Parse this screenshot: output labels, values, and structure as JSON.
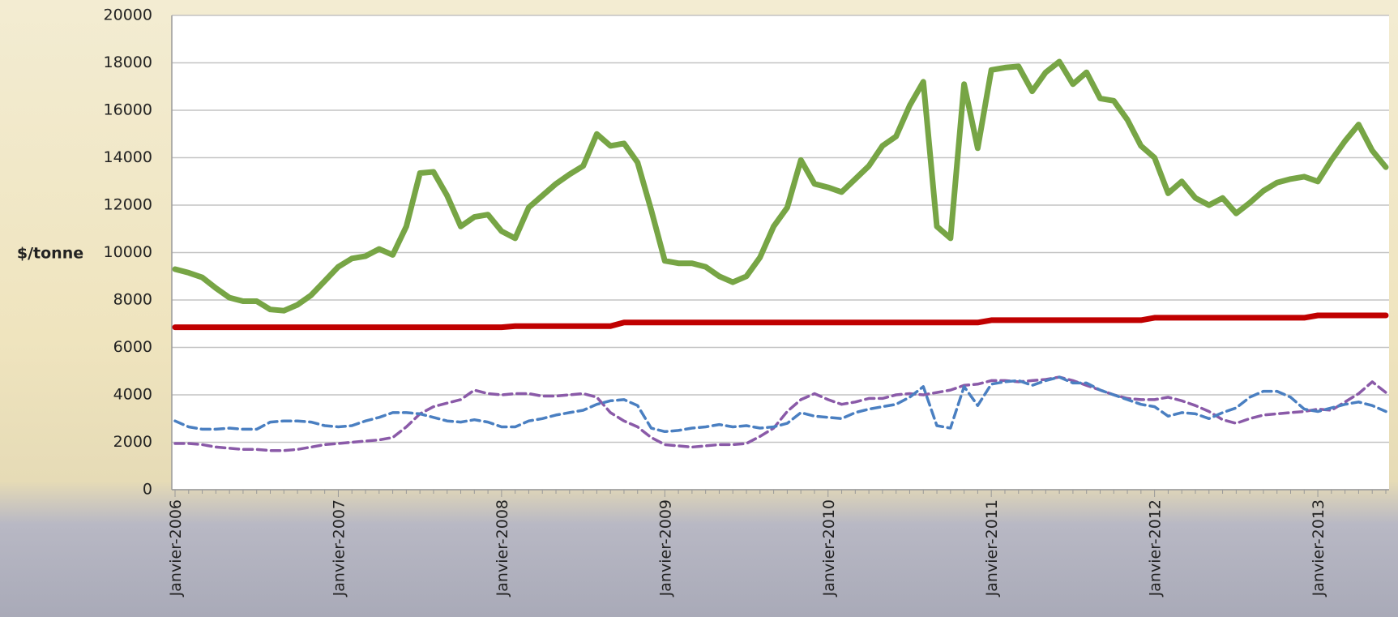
{
  "chart_data": {
    "type": "line",
    "ylabel": "$/tonne",
    "categories": [
      "Janvier-2006",
      null,
      null,
      null,
      null,
      null,
      null,
      null,
      null,
      null,
      null,
      null,
      "Janvier-2007",
      null,
      null,
      null,
      null,
      null,
      null,
      null,
      null,
      null,
      null,
      null,
      "Janvier-2008",
      null,
      null,
      null,
      null,
      null,
      null,
      null,
      null,
      null,
      null,
      null,
      "Janvier-2009",
      null,
      null,
      null,
      null,
      null,
      null,
      null,
      null,
      null,
      null,
      null,
      "Janvier-2010",
      null,
      null,
      null,
      null,
      null,
      null,
      null,
      null,
      null,
      null,
      null,
      "Janvier-2011",
      null,
      null,
      null,
      null,
      null,
      null,
      null,
      null,
      null,
      null,
      null,
      "Janvier-2012",
      null,
      null,
      null,
      null,
      null,
      null,
      null,
      null,
      null,
      null,
      null,
      "Janvier-2013",
      null,
      null,
      null,
      null,
      null
    ],
    "series": [
      {
        "color": "#77a545",
        "dashed": false,
        "values": [
          9300,
          9150,
          8950,
          8500,
          8100,
          7950,
          7950,
          7600,
          7550,
          7800,
          8200,
          8800,
          9400,
          9750,
          9850,
          10150,
          9900,
          11100,
          13350,
          13400,
          12400,
          11100,
          11500,
          11600,
          10900,
          10600,
          11900,
          12400,
          12900,
          13300,
          13650,
          15000,
          14500,
          14600,
          13800,
          11800,
          9650,
          9550,
          9550,
          9400,
          9000,
          8750,
          9000,
          9800,
          11100,
          11900,
          13900,
          12900,
          12750,
          12550,
          13100,
          13650,
          14500,
          14900,
          16200,
          17200,
          11100,
          10600,
          17100,
          14400,
          17700,
          17800,
          17850,
          16800,
          17600,
          18050,
          17100,
          17600,
          16500,
          16400,
          15600,
          14500,
          14000,
          12500,
          13000,
          12300,
          12000,
          12300,
          11650,
          12100,
          12600,
          12950,
          13100,
          13200,
          13000,
          13900,
          14700,
          15400,
          14300,
          13600
        ]
      },
      {
        "color": "#c00000",
        "dashed": false,
        "values": [
          6850,
          6850,
          6850,
          6850,
          6850,
          6850,
          6850,
          6850,
          6850,
          6850,
          6850,
          6850,
          6850,
          6850,
          6850,
          6850,
          6850,
          6850,
          6850,
          6850,
          6850,
          6850,
          6850,
          6850,
          6850,
          6900,
          6900,
          6900,
          6900,
          6900,
          6900,
          6900,
          6900,
          7050,
          7050,
          7050,
          7050,
          7050,
          7050,
          7050,
          7050,
          7050,
          7050,
          7050,
          7050,
          7050,
          7050,
          7050,
          7050,
          7050,
          7050,
          7050,
          7050,
          7050,
          7050,
          7050,
          7050,
          7050,
          7050,
          7050,
          7150,
          7150,
          7150,
          7150,
          7150,
          7150,
          7150,
          7150,
          7150,
          7150,
          7150,
          7150,
          7250,
          7250,
          7250,
          7250,
          7250,
          7250,
          7250,
          7250,
          7250,
          7250,
          7250,
          7250,
          7350,
          7350,
          7350,
          7350,
          7350,
          7350
        ]
      },
      {
        "color": "#4a7fc1",
        "dashed": true,
        "values": [
          2900,
          2650,
          2550,
          2550,
          2600,
          2550,
          2550,
          2850,
          2900,
          2900,
          2850,
          2700,
          2650,
          2700,
          2900,
          3050,
          3250,
          3250,
          3200,
          3050,
          2900,
          2850,
          2950,
          2850,
          2650,
          2650,
          2900,
          3000,
          3150,
          3250,
          3350,
          3600,
          3750,
          3800,
          3550,
          2600,
          2450,
          2500,
          2600,
          2650,
          2750,
          2650,
          2700,
          2600,
          2650,
          2800,
          3250,
          3100,
          3050,
          3000,
          3250,
          3400,
          3500,
          3600,
          3900,
          4350,
          2700,
          2600,
          4350,
          3550,
          4450,
          4550,
          4600,
          4400,
          4600,
          4750,
          4500,
          4500,
          4200,
          4000,
          3800,
          3600,
          3500,
          3100,
          3250,
          3200,
          3000,
          3250,
          3450,
          3900,
          4150,
          4150,
          3900,
          3400,
          3300,
          3450,
          3600,
          3700,
          3550,
          3300
        ]
      },
      {
        "color": "#8a5aa8",
        "dashed": true,
        "values": [
          1950,
          1950,
          1900,
          1800,
          1750,
          1700,
          1700,
          1650,
          1650,
          1700,
          1800,
          1900,
          1950,
          2000,
          2050,
          2100,
          2200,
          2650,
          3200,
          3500,
          3650,
          3800,
          4200,
          4050,
          4000,
          4050,
          4050,
          3950,
          3950,
          4000,
          4050,
          3900,
          3250,
          2900,
          2650,
          2200,
          1900,
          1850,
          1800,
          1850,
          1900,
          1900,
          1950,
          2250,
          2600,
          3300,
          3800,
          4050,
          3800,
          3600,
          3700,
          3850,
          3850,
          4000,
          4050,
          4000,
          4100,
          4200,
          4400,
          4450,
          4600,
          4600,
          4550,
          4600,
          4650,
          4750,
          4600,
          4400,
          4200,
          4000,
          3850,
          3800,
          3800,
          3900,
          3750,
          3550,
          3300,
          2950,
          2800,
          3000,
          3150,
          3200,
          3250,
          3300,
          3400,
          3350,
          3700,
          4050,
          4550,
          4100
        ]
      }
    ],
    "ylim": [
      0,
      20000
    ],
    "yticks": [
      0,
      2000,
      4000,
      6000,
      8000,
      10000,
      12000,
      14000,
      16000,
      18000,
      20000
    ],
    "grid": true
  }
}
